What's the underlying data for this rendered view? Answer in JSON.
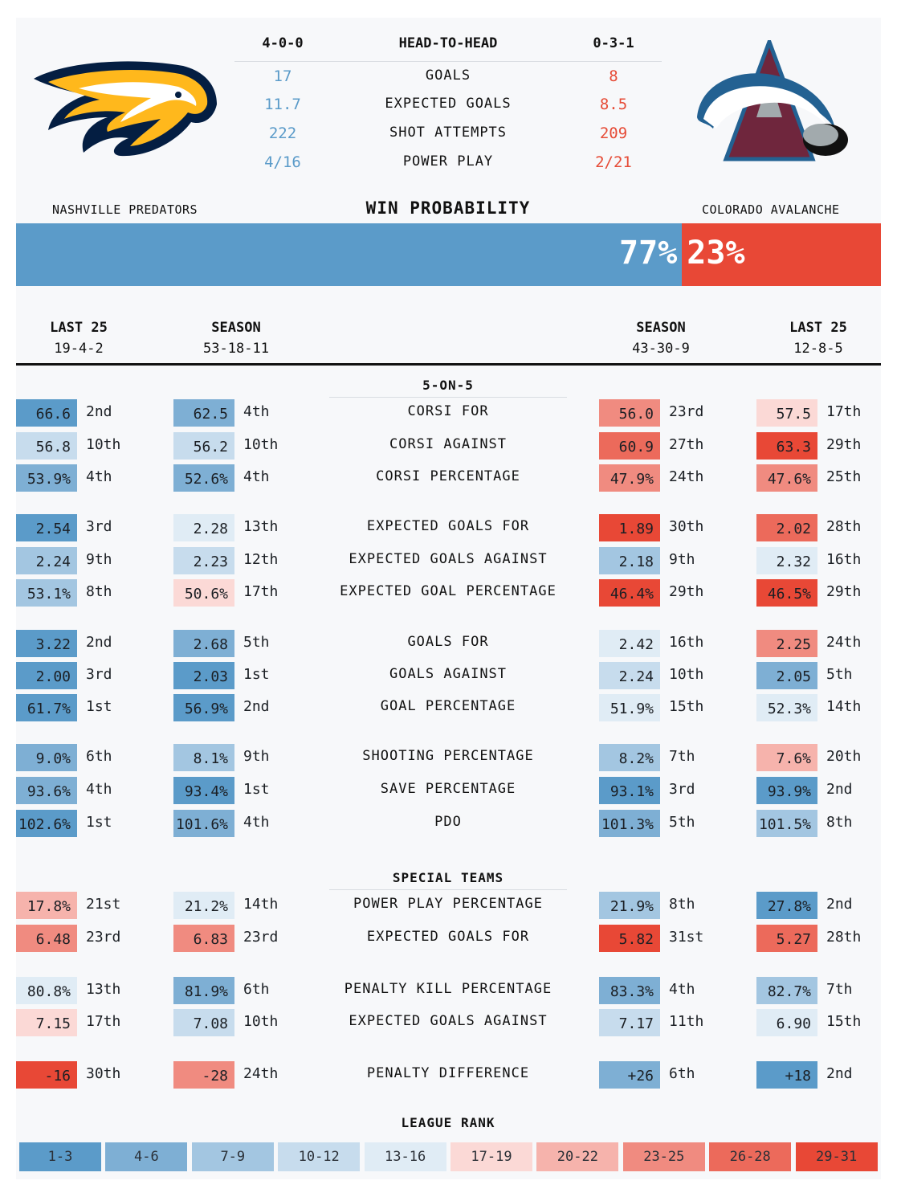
{
  "head_to_head": {
    "nsh_record": "4-0-0",
    "title": "HEAD-TO-HEAD",
    "col_record": "0-3-1",
    "rows": [
      {
        "label": "GOALS",
        "nsh": "17",
        "col": "8"
      },
      {
        "label": "EXPECTED GOALS",
        "nsh": "11.7",
        "col": "8.5"
      },
      {
        "label": "SHOT ATTEMPTS",
        "nsh": "222",
        "col": "209"
      },
      {
        "label": "POWER PLAY",
        "nsh": "4/16",
        "col": "2/21"
      }
    ]
  },
  "teams": {
    "home": "NASHVILLE PREDATORS",
    "away": "COLORADO AVALANCHE"
  },
  "win_probability": {
    "title": "WIN PROBABILITY",
    "home_pct": "77%",
    "away_pct": "23%",
    "home_value": 77
  },
  "columns": {
    "nsh_last25": {
      "label": "LAST 25",
      "record": "19-4-2"
    },
    "nsh_season": {
      "label": "SEASON",
      "record": "53-18-11"
    },
    "col_season": {
      "label": "SEASON",
      "record": "43-30-9"
    },
    "col_last25": {
      "label": "LAST 25",
      "record": "12-8-5"
    }
  },
  "sections": {
    "five_on_five": "5-ON-5",
    "special_teams": "SPECIAL TEAMS",
    "league_rank": "LEAGUE RANK"
  },
  "colors": {
    "rank_scale": [
      "#5b9bc9",
      "#7eafd4",
      "#a3c6e1",
      "#c7dced",
      "#e0ecf5",
      "#fbd9d6",
      "#f6b3ac",
      "#f08b80",
      "#ec6a5b",
      "#e84836"
    ],
    "nsh_accent": "#5b9bc9",
    "col_accent": "#e84836"
  },
  "legend": [
    "1-3",
    "4-6",
    "7-9",
    "10-12",
    "13-16",
    "17-19",
    "20-22",
    "23-25",
    "26-28",
    "29-31"
  ],
  "logos": {
    "home": "predators-logo",
    "away": "avalanche-logo"
  },
  "stats": [
    {
      "metric": "CORSI FOR",
      "cells": [
        {
          "v": "66.6",
          "r": "2nd",
          "b": 1
        },
        {
          "v": "62.5",
          "r": "4th",
          "b": 2
        },
        {
          "v": "56.0",
          "r": "23rd",
          "b": 8
        },
        {
          "v": "57.5",
          "r": "17th",
          "b": 6
        }
      ]
    },
    {
      "metric": "CORSI AGAINST",
      "cells": [
        {
          "v": "56.8",
          "r": "10th",
          "b": 4
        },
        {
          "v": "56.2",
          "r": "10th",
          "b": 4
        },
        {
          "v": "60.9",
          "r": "27th",
          "b": 9
        },
        {
          "v": "63.3",
          "r": "29th",
          "b": 10
        }
      ]
    },
    {
      "metric": "CORSI PERCENTAGE",
      "cells": [
        {
          "v": "53.9%",
          "r": "4th",
          "b": 2
        },
        {
          "v": "52.6%",
          "r": "4th",
          "b": 2
        },
        {
          "v": "47.9%",
          "r": "24th",
          "b": 8
        },
        {
          "v": "47.6%",
          "r": "25th",
          "b": 8
        }
      ]
    },
    {
      "metric": "EXPECTED GOALS FOR",
      "cells": [
        {
          "v": "2.54",
          "r": "3rd",
          "b": 1
        },
        {
          "v": "2.28",
          "r": "13th",
          "b": 5
        },
        {
          "v": "1.89",
          "r": "30th",
          "b": 10
        },
        {
          "v": "2.02",
          "r": "28th",
          "b": 9
        }
      ]
    },
    {
      "metric": "EXPECTED GOALS AGAINST",
      "cells": [
        {
          "v": "2.24",
          "r": "9th",
          "b": 3
        },
        {
          "v": "2.23",
          "r": "12th",
          "b": 4
        },
        {
          "v": "2.18",
          "r": "9th",
          "b": 3
        },
        {
          "v": "2.32",
          "r": "16th",
          "b": 5
        }
      ]
    },
    {
      "metric": "EXPECTED GOAL PERCENTAGE",
      "cells": [
        {
          "v": "53.1%",
          "r": "8th",
          "b": 3
        },
        {
          "v": "50.6%",
          "r": "17th",
          "b": 6
        },
        {
          "v": "46.4%",
          "r": "29th",
          "b": 10
        },
        {
          "v": "46.5%",
          "r": "29th",
          "b": 10
        }
      ]
    },
    {
      "metric": "GOALS FOR",
      "cells": [
        {
          "v": "3.22",
          "r": "2nd",
          "b": 1
        },
        {
          "v": "2.68",
          "r": "5th",
          "b": 2
        },
        {
          "v": "2.42",
          "r": "16th",
          "b": 5
        },
        {
          "v": "2.25",
          "r": "24th",
          "b": 8
        }
      ]
    },
    {
      "metric": "GOALS AGAINST",
      "cells": [
        {
          "v": "2.00",
          "r": "3rd",
          "b": 1
        },
        {
          "v": "2.03",
          "r": "1st",
          "b": 1
        },
        {
          "v": "2.24",
          "r": "10th",
          "b": 4
        },
        {
          "v": "2.05",
          "r": "5th",
          "b": 2
        }
      ]
    },
    {
      "metric": "GOAL PERCENTAGE",
      "cells": [
        {
          "v": "61.7%",
          "r": "1st",
          "b": 1
        },
        {
          "v": "56.9%",
          "r": "2nd",
          "b": 1
        },
        {
          "v": "51.9%",
          "r": "15th",
          "b": 5
        },
        {
          "v": "52.3%",
          "r": "14th",
          "b": 5
        }
      ]
    },
    {
      "metric": "SHOOTING PERCENTAGE",
      "cells": [
        {
          "v": "9.0%",
          "r": "6th",
          "b": 2
        },
        {
          "v": "8.1%",
          "r": "9th",
          "b": 3
        },
        {
          "v": "8.2%",
          "r": "7th",
          "b": 3
        },
        {
          "v": "7.6%",
          "r": "20th",
          "b": 7
        }
      ]
    },
    {
      "metric": "SAVE PERCENTAGE",
      "cells": [
        {
          "v": "93.6%",
          "r": "4th",
          "b": 2
        },
        {
          "v": "93.4%",
          "r": "1st",
          "b": 1
        },
        {
          "v": "93.1%",
          "r": "3rd",
          "b": 1
        },
        {
          "v": "93.9%",
          "r": "2nd",
          "b": 1
        }
      ]
    },
    {
      "metric": "PDO",
      "cells": [
        {
          "v": "102.6%",
          "r": "1st",
          "b": 1
        },
        {
          "v": "101.6%",
          "r": "4th",
          "b": 2
        },
        {
          "v": "101.3%",
          "r": "5th",
          "b": 2
        },
        {
          "v": "101.5%",
          "r": "8th",
          "b": 3
        }
      ]
    },
    {
      "metric": "POWER PLAY PERCENTAGE",
      "cells": [
        {
          "v": "17.8%",
          "r": "21st",
          "b": 7
        },
        {
          "v": "21.2%",
          "r": "14th",
          "b": 5
        },
        {
          "v": "21.9%",
          "r": "8th",
          "b": 3
        },
        {
          "v": "27.8%",
          "r": "2nd",
          "b": 1
        }
      ]
    },
    {
      "metric": "EXPECTED GOALS FOR",
      "cells": [
        {
          "v": "6.48",
          "r": "23rd",
          "b": 8
        },
        {
          "v": "6.83",
          "r": "23rd",
          "b": 8
        },
        {
          "v": "5.82",
          "r": "31st",
          "b": 10
        },
        {
          "v": "5.27",
          "r": "28th",
          "b": 9
        }
      ]
    },
    {
      "metric": "PENALTY KILL PERCENTAGE",
      "cells": [
        {
          "v": "80.8%",
          "r": "13th",
          "b": 5
        },
        {
          "v": "81.9%",
          "r": "6th",
          "b": 2
        },
        {
          "v": "83.3%",
          "r": "4th",
          "b": 2
        },
        {
          "v": "82.7%",
          "r": "7th",
          "b": 3
        }
      ]
    },
    {
      "metric": "EXPECTED GOALS AGAINST",
      "cells": [
        {
          "v": "7.15",
          "r": "17th",
          "b": 6
        },
        {
          "v": "7.08",
          "r": "10th",
          "b": 4
        },
        {
          "v": "7.17",
          "r": "11th",
          "b": 4
        },
        {
          "v": "6.90",
          "r": "15th",
          "b": 5
        }
      ]
    },
    {
      "metric": "PENALTY DIFFERENCE",
      "cells": [
        {
          "v": "-16",
          "r": "30th",
          "b": 10
        },
        {
          "v": "-28",
          "r": "24th",
          "b": 8
        },
        {
          "v": "+26",
          "r": "6th",
          "b": 2
        },
        {
          "v": "+18",
          "r": "2nd",
          "b": 1
        }
      ]
    }
  ]
}
